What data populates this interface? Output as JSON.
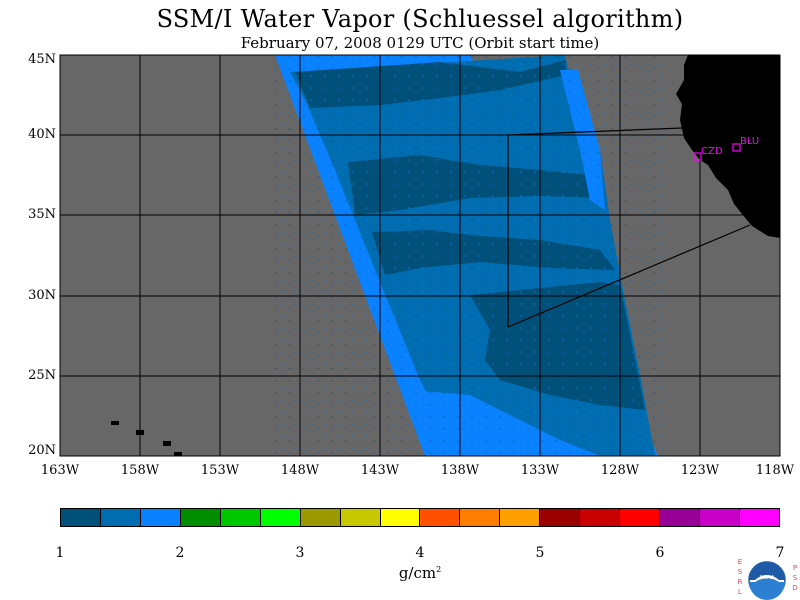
{
  "title": "SSM/I Water Vapor (Schluessel algorithm)",
  "subtitle": "February 07, 2008  0129 UTC  (Orbit start time)",
  "map": {
    "lat_labels": [
      "45N",
      "40N",
      "35N",
      "30N",
      "25N",
      "20N"
    ],
    "lon_labels": [
      "163W",
      "158W",
      "153W",
      "148W",
      "143W",
      "138W",
      "133W",
      "128W",
      "123W",
      "118W"
    ],
    "stations": [
      {
        "name": "CZD",
        "lat": 38.6,
        "lon": -123.2
      },
      {
        "name": "BLU",
        "lat": 39.2,
        "lon": -121.0
      }
    ],
    "colors": {
      "no_data": "#676767",
      "land": "#000000",
      "station": "#ff00ff"
    }
  },
  "colorbar": {
    "colors": [
      "#00507a",
      "#006db0",
      "#0a82ff",
      "#008e00",
      "#00c800",
      "#00ff00",
      "#9a9a00",
      "#c8c800",
      "#ffff00",
      "#ff5000",
      "#ff7d00",
      "#ffa000",
      "#9a0000",
      "#c80000",
      "#ff0000",
      "#960096",
      "#c800c8",
      "#ff00ff"
    ],
    "ticks": [
      "1",
      "2",
      "3",
      "4",
      "5",
      "6",
      "7"
    ],
    "unit_base": "g/cm",
    "unit_sup": "2"
  },
  "logo": {
    "left_letters": [
      "E",
      "S",
      "R",
      "L"
    ],
    "right_letters": [
      "P",
      "S",
      "D"
    ],
    "center_text": "NOAA"
  }
}
